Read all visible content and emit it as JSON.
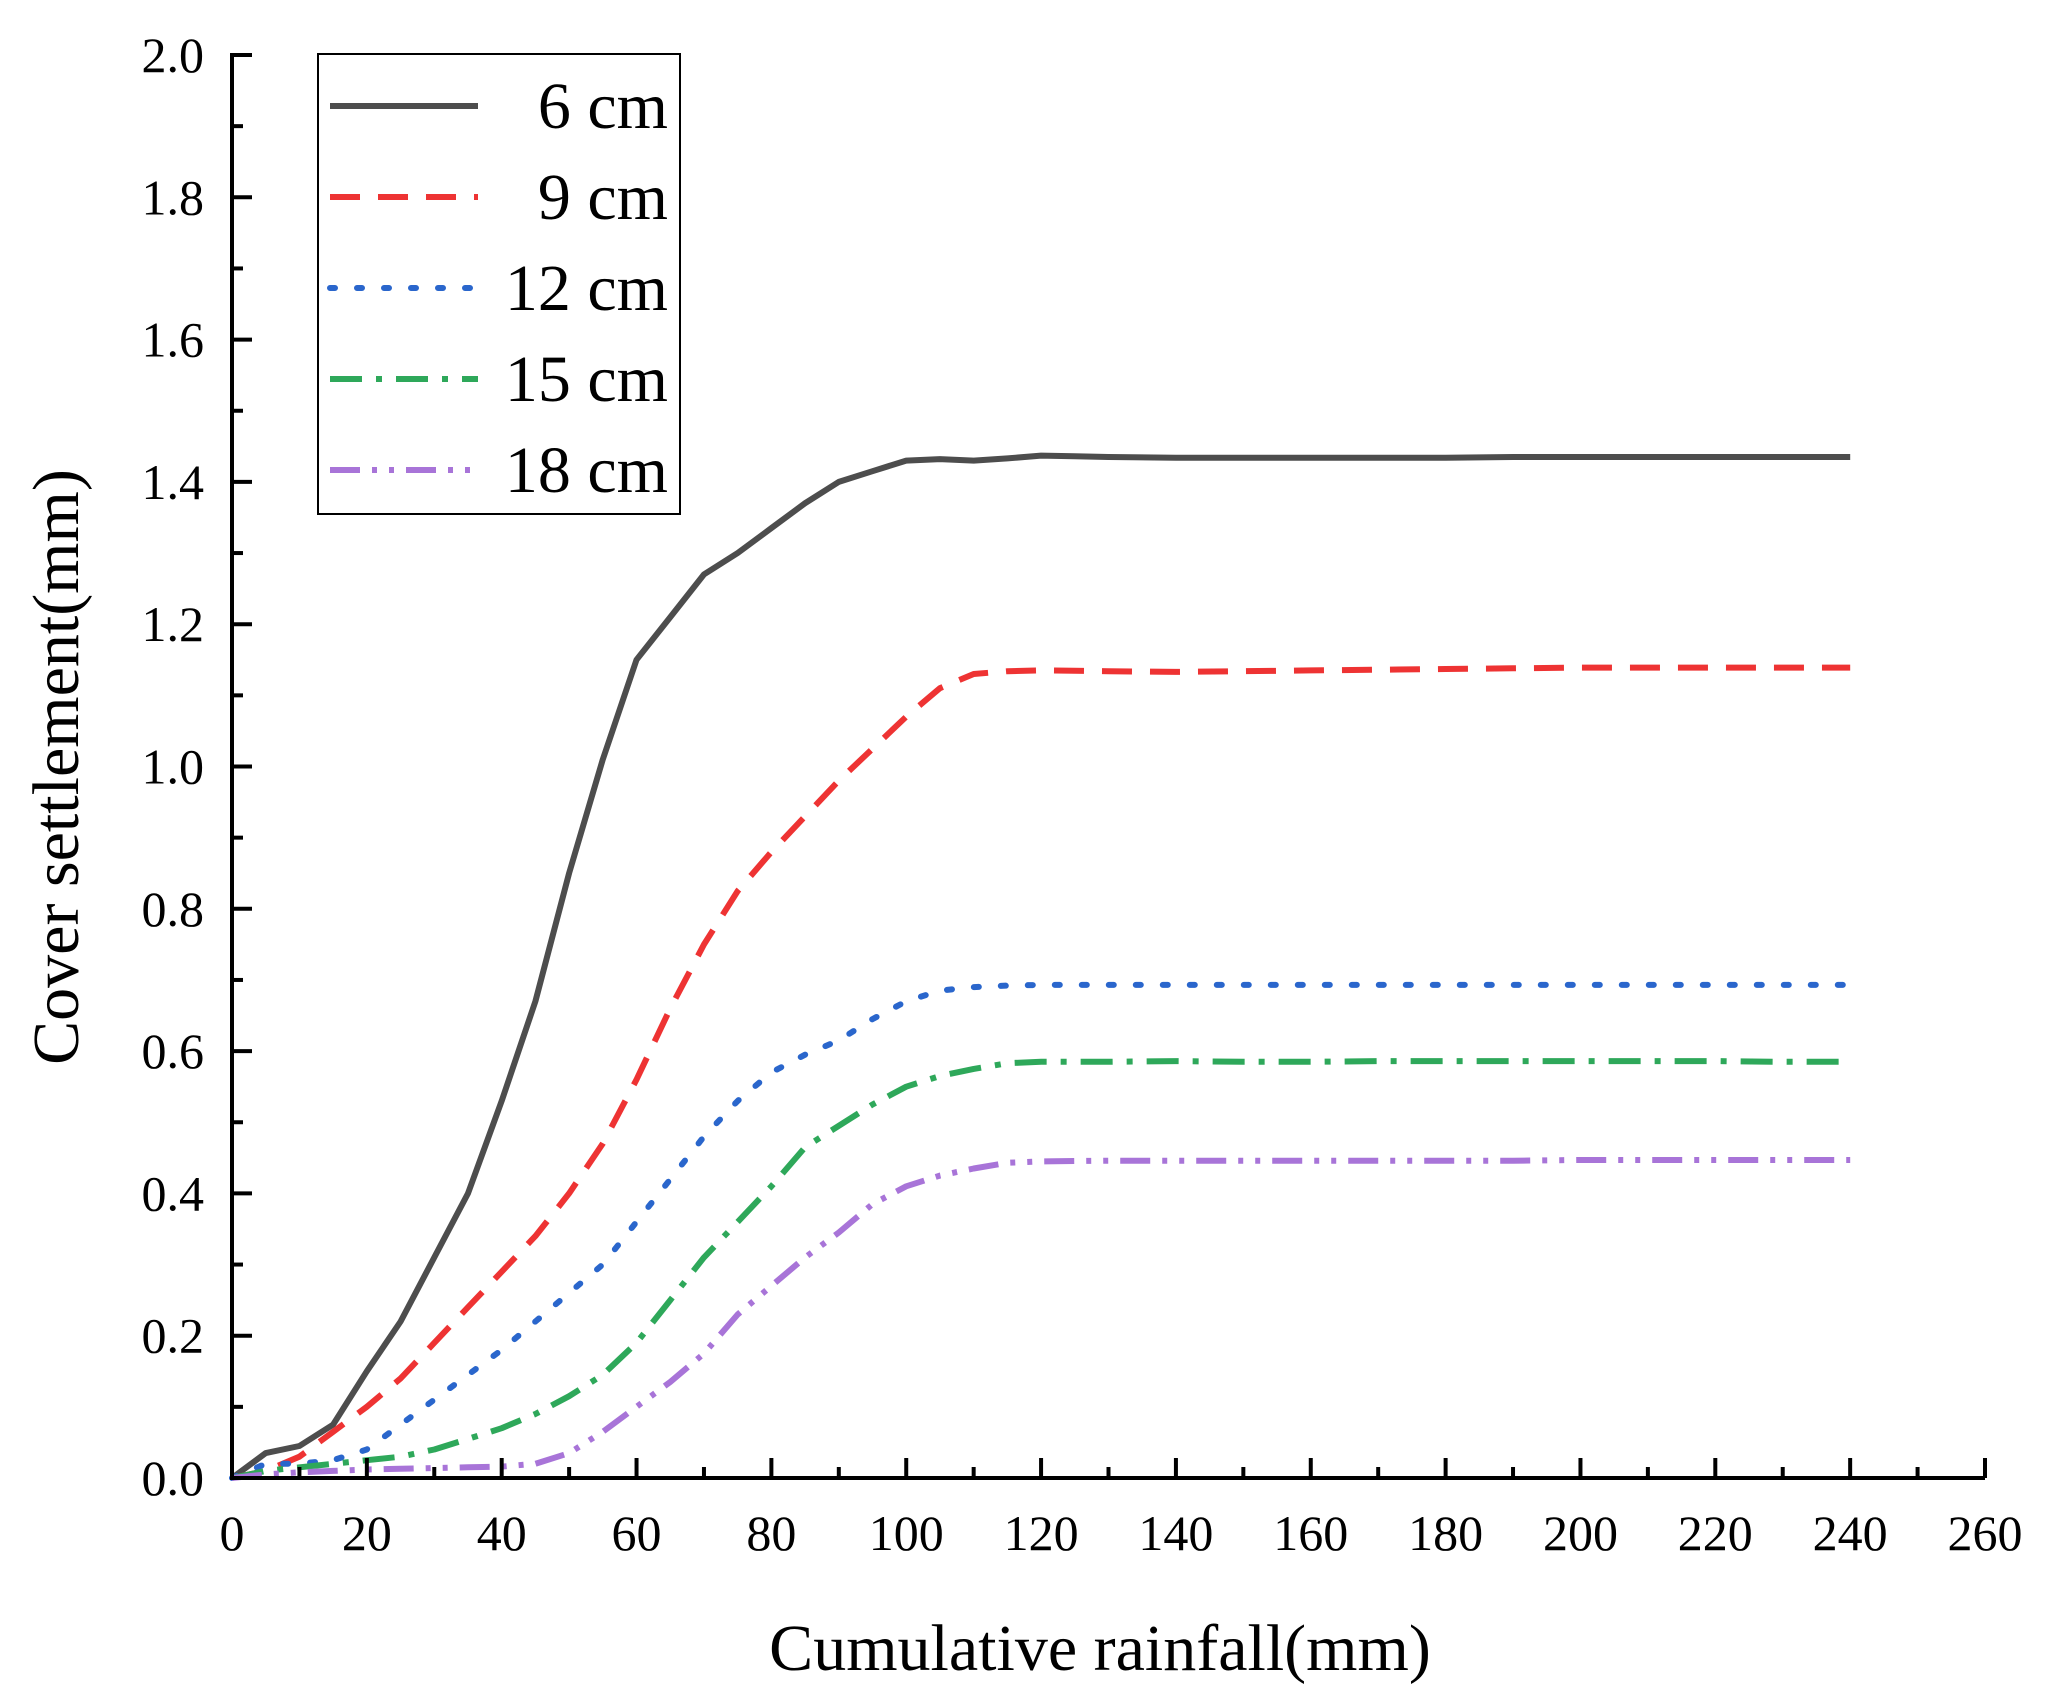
{
  "chart_data": {
    "type": "line",
    "title": "",
    "xlabel": "Cumulative rainfall(mm)",
    "ylabel": "Cover settlement(mm)",
    "xlim": [
      0,
      260
    ],
    "ylim": [
      0,
      2.0
    ],
    "x_ticks": [
      "0",
      "20",
      "40",
      "60",
      "80",
      "100",
      "120",
      "140",
      "160",
      "180",
      "200",
      "220",
      "240",
      "260"
    ],
    "y_ticks": [
      "0.0",
      "0.2",
      "0.4",
      "0.6",
      "0.8",
      "1.0",
      "1.2",
      "1.4",
      "1.6",
      "1.8",
      "2.0"
    ],
    "grid": false,
    "legend_position": "top-left",
    "series": [
      {
        "name": "6 cm",
        "color": "#4d4d4d",
        "dash": "solid",
        "x": [
          0,
          5,
          10,
          15,
          20,
          25,
          30,
          35,
          40,
          45,
          50,
          55,
          60,
          65,
          70,
          75,
          80,
          85,
          90,
          95,
          100,
          105,
          110,
          115,
          120,
          125,
          130,
          140,
          150,
          160,
          170,
          180,
          190,
          200,
          210,
          220,
          230,
          240
        ],
        "y": [
          0.0,
          0.035,
          0.045,
          0.075,
          0.15,
          0.22,
          0.31,
          0.4,
          0.53,
          0.67,
          0.85,
          1.01,
          1.15,
          1.21,
          1.27,
          1.3,
          1.335,
          1.37,
          1.4,
          1.415,
          1.43,
          1.432,
          1.43,
          1.433,
          1.437,
          1.436,
          1.435,
          1.434,
          1.434,
          1.434,
          1.434,
          1.434,
          1.435,
          1.435,
          1.435,
          1.435,
          1.435,
          1.435
        ]
      },
      {
        "name": "9 cm",
        "color": "#ee3333",
        "dash": "dashed",
        "x": [
          0,
          5,
          10,
          15,
          20,
          25,
          30,
          35,
          40,
          45,
          50,
          55,
          60,
          65,
          70,
          75,
          80,
          85,
          90,
          95,
          100,
          105,
          110,
          115,
          120,
          130,
          140,
          150,
          160,
          170,
          180,
          190,
          200,
          210,
          220,
          230,
          240
        ],
        "y": [
          0.0,
          0.01,
          0.03,
          0.065,
          0.1,
          0.14,
          0.19,
          0.24,
          0.29,
          0.34,
          0.4,
          0.47,
          0.56,
          0.66,
          0.75,
          0.825,
          0.88,
          0.93,
          0.98,
          1.025,
          1.07,
          1.11,
          1.13,
          1.134,
          1.135,
          1.134,
          1.133,
          1.134,
          1.135,
          1.136,
          1.137,
          1.138,
          1.139,
          1.139,
          1.139,
          1.139,
          1.139
        ]
      },
      {
        "name": "12 cm",
        "color": "#2a66cc",
        "dash": "dotted",
        "x": [
          0,
          5,
          10,
          15,
          20,
          25,
          30,
          35,
          40,
          45,
          50,
          55,
          60,
          65,
          70,
          75,
          80,
          85,
          90,
          95,
          100,
          105,
          110,
          115,
          120,
          130,
          140,
          150,
          160,
          170,
          180,
          190,
          200,
          210,
          220,
          230,
          240
        ],
        "y": [
          0.0,
          0.02,
          0.02,
          0.025,
          0.04,
          0.075,
          0.11,
          0.145,
          0.18,
          0.22,
          0.26,
          0.3,
          0.36,
          0.42,
          0.48,
          0.53,
          0.57,
          0.595,
          0.615,
          0.645,
          0.67,
          0.685,
          0.69,
          0.692,
          0.693,
          0.693,
          0.693,
          0.693,
          0.693,
          0.693,
          0.693,
          0.693,
          0.693,
          0.693,
          0.693,
          0.693,
          0.693
        ]
      },
      {
        "name": "15 cm",
        "color": "#2ea85a",
        "dash": "dash-dot",
        "x": [
          0,
          5,
          10,
          15,
          20,
          25,
          30,
          35,
          40,
          45,
          50,
          55,
          60,
          65,
          70,
          75,
          80,
          85,
          90,
          95,
          100,
          105,
          110,
          115,
          120,
          130,
          140,
          150,
          160,
          170,
          180,
          190,
          200,
          210,
          220,
          230,
          240
        ],
        "y": [
          0.0,
          0.01,
          0.015,
          0.02,
          0.025,
          0.03,
          0.04,
          0.055,
          0.07,
          0.09,
          0.115,
          0.145,
          0.19,
          0.25,
          0.31,
          0.36,
          0.41,
          0.465,
          0.495,
          0.525,
          0.55,
          0.565,
          0.575,
          0.583,
          0.585,
          0.585,
          0.586,
          0.585,
          0.585,
          0.586,
          0.586,
          0.586,
          0.586,
          0.586,
          0.586,
          0.585,
          0.585
        ]
      },
      {
        "name": "18 cm",
        "color": "#a874d8",
        "dash": "dash-dot-dot",
        "x": [
          0,
          5,
          10,
          15,
          20,
          25,
          30,
          35,
          40,
          45,
          50,
          55,
          60,
          65,
          70,
          75,
          80,
          85,
          90,
          95,
          100,
          105,
          110,
          115,
          120,
          130,
          140,
          150,
          160,
          170,
          180,
          190,
          200,
          210,
          220,
          230,
          240
        ],
        "y": [
          0.0,
          0.005,
          0.008,
          0.01,
          0.012,
          0.013,
          0.014,
          0.015,
          0.016,
          0.02,
          0.035,
          0.065,
          0.1,
          0.135,
          0.175,
          0.23,
          0.27,
          0.31,
          0.345,
          0.385,
          0.41,
          0.425,
          0.435,
          0.443,
          0.445,
          0.446,
          0.446,
          0.446,
          0.446,
          0.446,
          0.446,
          0.446,
          0.447,
          0.447,
          0.447,
          0.447,
          0.447
        ]
      }
    ]
  }
}
